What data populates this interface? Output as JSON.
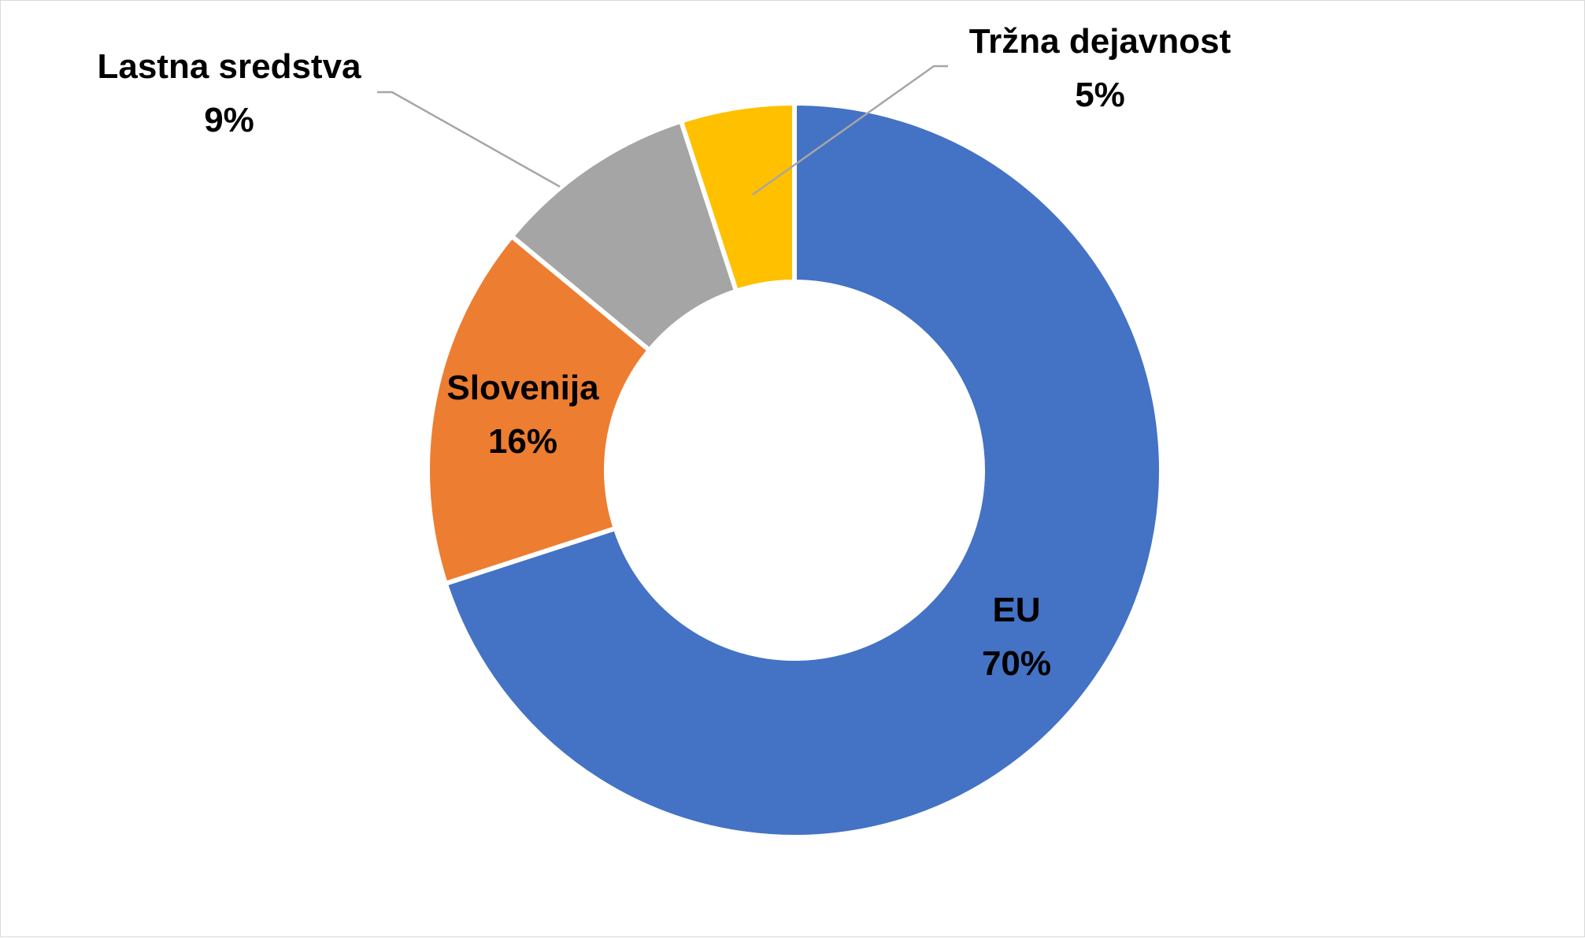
{
  "chart_data": {
    "type": "pie",
    "variant": "donut",
    "start": "12 o'clock, clockwise",
    "slices": [
      {
        "name": "EU",
        "value": 70,
        "label": "70%",
        "color": "#4472C4"
      },
      {
        "name": "Slovenija",
        "value": 16,
        "label": "16%",
        "color": "#ED7D31"
      },
      {
        "name": "Lastna sredstva",
        "value": 9,
        "label": "9%",
        "color": "#A5A5A5"
      },
      {
        "name": "Tržna dejavnost",
        "value": 5,
        "label": "5%",
        "color": "#FFC000"
      }
    ],
    "legend": "none",
    "separator_color": "#FFFFFF",
    "leader_line_color": "#A6A6A6"
  }
}
